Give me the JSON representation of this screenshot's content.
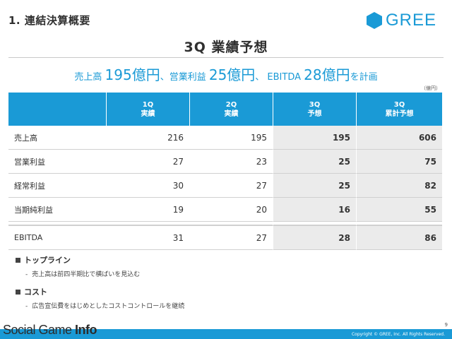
{
  "header": {
    "section_title": "1. 連結決算概要",
    "logo_text": "GREE",
    "colors": {
      "brand": "#1a9ad6",
      "forecast_bg": "#ebebeb"
    }
  },
  "main_title": "3Q 業績予想",
  "subtitle": {
    "part1_label": "売上高 ",
    "part1_value": "195億円",
    "sep1": "、営業利益 ",
    "part2_value": "25億円",
    "sep2": "、 EBITDA ",
    "part3_value": "28億円",
    "suffix": "を計画"
  },
  "unit_label": "（億円）",
  "table": {
    "columns": [
      {
        "line1": "",
        "line2": ""
      },
      {
        "line1": "1Q",
        "line2": "実績"
      },
      {
        "line1": "2Q",
        "line2": "実績"
      },
      {
        "line1": "3Q",
        "line2": "予想"
      },
      {
        "line1": "3Q",
        "line2": "累計予想"
      }
    ],
    "rows": [
      {
        "label": "売上高",
        "q1": "216",
        "q2": "195",
        "q3": "195",
        "cum": "606"
      },
      {
        "label": "営業利益",
        "q1": "27",
        "q2": "23",
        "q3": "25",
        "cum": "75"
      },
      {
        "label": "経常利益",
        "q1": "30",
        "q2": "27",
        "q3": "25",
        "cum": "82"
      },
      {
        "label": "当期純利益",
        "q1": "19",
        "q2": "20",
        "q3": "16",
        "cum": "55"
      },
      {
        "label": "EBITDA",
        "q1": "31",
        "q2": "27",
        "q3": "28",
        "cum": "86"
      }
    ]
  },
  "bullets": [
    {
      "heading": "トップライン",
      "item": "売上高は前四半期比で横ばいを見込む"
    },
    {
      "heading": "コスト",
      "item": "広告宣伝費をはじめとしたコストコントロールを継続"
    }
  ],
  "footer": {
    "watermark_a": "Social Game ",
    "watermark_b": "Info",
    "page_number": "9",
    "copyright": "Copyright © GREE, Inc. All Rights Reserved."
  }
}
